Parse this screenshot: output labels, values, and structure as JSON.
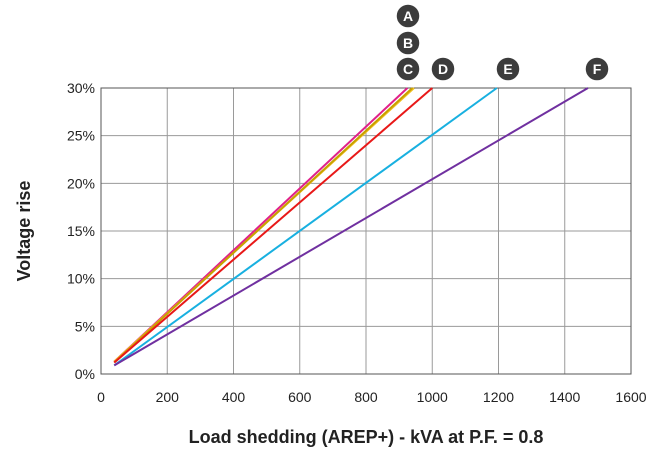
{
  "chart_data": {
    "type": "line",
    "title": "",
    "xlabel": "Load shedding (AREP+) - kVA at P.F. = 0.8",
    "ylabel": "Voltage rise",
    "xlim": [
      0,
      1600
    ],
    "ylim": [
      0,
      30
    ],
    "x_ticks": [
      "0",
      "200",
      "400",
      "600",
      "800",
      "1000",
      "1200",
      "1400",
      "1600"
    ],
    "y_ticks": [
      "0%",
      "5%",
      "10%",
      "15%",
      "20%",
      "25%",
      "30%"
    ],
    "grid": true,
    "legend": "none",
    "series": [
      {
        "name": "A",
        "color": "#e0218a",
        "x": [
          40,
          925
        ],
        "y": [
          1.3,
          30
        ]
      },
      {
        "name": "B",
        "color": "#f0c020",
        "x": [
          40,
          945
        ],
        "y": [
          1.3,
          30
        ]
      },
      {
        "name": "C",
        "color": "#c8a000",
        "x": [
          40,
          940
        ],
        "y": [
          1.2,
          30
        ]
      },
      {
        "name": "D",
        "color": "#e81818",
        "x": [
          40,
          1000
        ],
        "y": [
          1.2,
          30
        ]
      },
      {
        "name": "E",
        "color": "#18b0e0",
        "x": [
          40,
          1195
        ],
        "y": [
          0.9,
          30
        ]
      },
      {
        "name": "F",
        "color": "#7030a0",
        "x": [
          40,
          1470
        ],
        "y": [
          0.9,
          30
        ]
      }
    ],
    "markers": [
      "A",
      "B",
      "C",
      "D",
      "E",
      "F"
    ]
  }
}
